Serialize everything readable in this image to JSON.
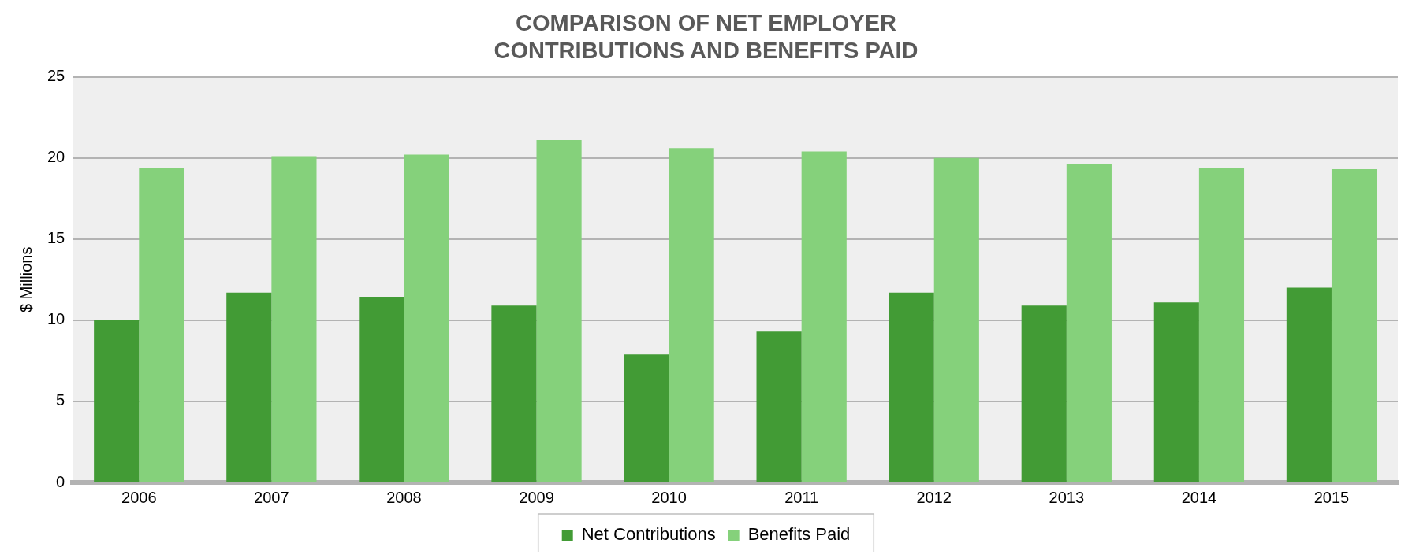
{
  "chart_data": {
    "type": "bar",
    "title": "COMPARISON OF NET EMPLOYER CONTRIBUTIONS AND BENEFITS PAID",
    "ylabel": "$ Millions",
    "categories": [
      "2006",
      "2007",
      "2008",
      "2009",
      "2010",
      "2011",
      "2012",
      "2013",
      "2014",
      "2015"
    ],
    "series": [
      {
        "name": "Net Contributions",
        "color": "#429b35",
        "values": [
          10.0,
          11.7,
          11.4,
          10.9,
          7.9,
          9.3,
          11.7,
          10.9,
          11.1,
          12.0
        ]
      },
      {
        "name": "Benefits Paid",
        "color": "#85d17b",
        "values": [
          19.4,
          20.1,
          20.2,
          21.1,
          20.6,
          20.4,
          20.0,
          19.6,
          19.4,
          19.3
        ]
      }
    ],
    "ylim": [
      0,
      25
    ],
    "yticks": [
      0,
      5,
      10,
      15,
      20,
      25
    ],
    "grid": "y",
    "legend": "bottom"
  }
}
